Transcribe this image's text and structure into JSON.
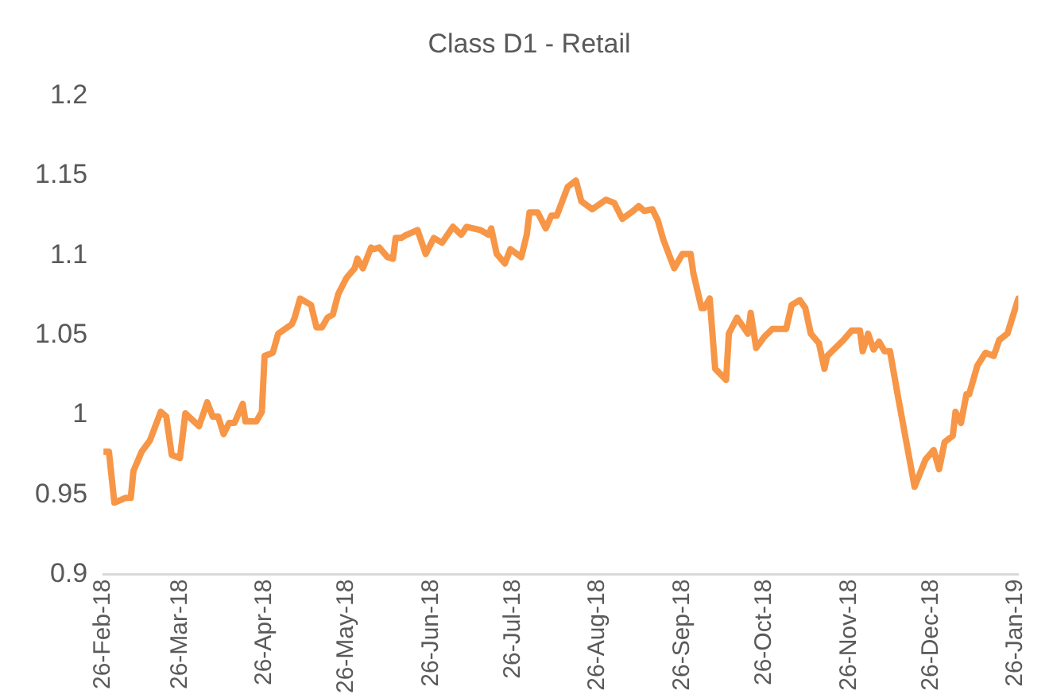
{
  "chart_data": {
    "type": "line",
    "title": "Class D1 - Retail",
    "x": [
      "2018-02-26",
      "2018-02-28",
      "2018-03-02",
      "2018-03-06",
      "2018-03-08",
      "2018-03-09",
      "2018-03-12",
      "2018-03-15",
      "2018-03-19",
      "2018-03-21",
      "2018-03-23",
      "2018-03-26",
      "2018-03-28",
      "2018-04-02",
      "2018-04-05",
      "2018-04-07",
      "2018-04-09",
      "2018-04-11",
      "2018-04-13",
      "2018-04-15",
      "2018-04-18",
      "2018-04-19",
      "2018-04-23",
      "2018-04-25",
      "2018-04-26",
      "2018-04-29",
      "2018-05-01",
      "2018-05-06",
      "2018-05-07",
      "2018-05-09",
      "2018-05-13",
      "2018-05-15",
      "2018-05-17",
      "2018-05-19",
      "2018-05-21",
      "2018-05-23",
      "2018-05-26",
      "2018-05-29",
      "2018-05-30",
      "2018-06-01",
      "2018-06-04",
      "2018-06-05",
      "2018-06-07",
      "2018-06-10",
      "2018-06-12",
      "2018-06-13",
      "2018-06-15",
      "2018-06-17",
      "2018-06-21",
      "2018-06-24",
      "2018-06-27",
      "2018-06-30",
      "2018-07-04",
      "2018-07-07",
      "2018-07-09",
      "2018-07-14",
      "2018-07-17",
      "2018-07-18",
      "2018-07-20",
      "2018-07-23",
      "2018-07-25",
      "2018-07-29",
      "2018-07-31",
      "2018-08-01",
      "2018-08-04",
      "2018-08-07",
      "2018-08-09",
      "2018-08-11",
      "2018-08-15",
      "2018-08-18",
      "2018-08-20",
      "2018-08-24",
      "2018-08-29",
      "2018-09-01",
      "2018-09-04",
      "2018-09-08",
      "2018-09-10",
      "2018-09-12",
      "2018-09-15",
      "2018-09-17",
      "2018-09-19",
      "2018-09-23",
      "2018-09-26",
      "2018-09-29",
      "2018-09-30",
      "2018-10-03",
      "2018-10-04",
      "2018-10-06",
      "2018-10-08",
      "2018-10-12",
      "2018-10-13",
      "2018-10-16",
      "2018-10-20",
      "2018-10-21",
      "2018-10-23",
      "2018-10-26",
      "2018-10-29",
      "2018-11-03",
      "2018-11-05",
      "2018-11-08",
      "2018-11-10",
      "2018-11-12",
      "2018-11-15",
      "2018-11-17",
      "2018-11-18",
      "2018-11-24",
      "2018-11-27",
      "2018-11-30",
      "2018-12-01",
      "2018-12-03",
      "2018-12-05",
      "2018-12-07",
      "2018-12-09",
      "2018-12-11",
      "2018-12-14",
      "2018-12-17",
      "2018-12-20",
      "2018-12-24",
      "2018-12-27",
      "2018-12-29",
      "2018-12-31",
      "2019-01-03",
      "2019-01-04",
      "2019-01-06",
      "2019-01-08",
      "2019-01-09",
      "2019-01-12",
      "2019-01-15",
      "2019-01-18",
      "2019-01-20",
      "2019-01-23",
      "2019-01-27"
    ],
    "series": [
      {
        "color": "#f79646",
        "values": [
          0.977,
          0.977,
          0.945,
          0.948,
          0.948,
          0.965,
          0.977,
          0.984,
          1.002,
          0.999,
          0.975,
          0.973,
          1.001,
          0.993,
          1.008,
          0.999,
          0.999,
          0.988,
          0.995,
          0.995,
          1.007,
          0.996,
          0.996,
          1.002,
          1.037,
          1.039,
          1.051,
          1.057,
          1.061,
          1.073,
          1.069,
          1.055,
          1.055,
          1.061,
          1.063,
          1.076,
          1.086,
          1.092,
          1.098,
          1.092,
          1.105,
          1.104,
          1.105,
          1.099,
          1.098,
          1.111,
          1.111,
          1.113,
          1.116,
          1.101,
          1.111,
          1.108,
          1.118,
          1.113,
          1.118,
          1.116,
          1.113,
          1.117,
          1.101,
          1.095,
          1.104,
          1.099,
          1.113,
          1.127,
          1.127,
          1.117,
          1.125,
          1.125,
          1.143,
          1.147,
          1.134,
          1.129,
          1.135,
          1.133,
          1.123,
          1.128,
          1.131,
          1.128,
          1.129,
          1.122,
          1.11,
          1.092,
          1.101,
          1.101,
          1.089,
          1.067,
          1.067,
          1.073,
          1.029,
          1.022,
          1.051,
          1.061,
          1.051,
          1.064,
          1.042,
          1.049,
          1.054,
          1.054,
          1.069,
          1.072,
          1.067,
          1.051,
          1.045,
          1.029,
          1.037,
          1.047,
          1.053,
          1.053,
          1.04,
          1.051,
          1.041,
          1.046,
          1.04,
          1.04,
          1.011,
          0.983,
          0.955,
          0.972,
          0.978,
          0.966,
          0.983,
          0.987,
          1.002,
          0.995,
          1.013,
          1.013,
          1.031,
          1.039,
          1.037,
          1.047,
          1.051,
          1.073
        ]
      }
    ],
    "xlim": [
      "2018-02-26",
      "2019-01-27"
    ],
    "xticks": [
      {
        "value": "2018-02-26",
        "label": "26-Feb-18"
      },
      {
        "value": "2018-03-26",
        "label": "26-Mar-18"
      },
      {
        "value": "2018-04-26",
        "label": "26-Apr-18"
      },
      {
        "value": "2018-05-26",
        "label": "26-May-18"
      },
      {
        "value": "2018-06-26",
        "label": "26-Jun-18"
      },
      {
        "value": "2018-07-26",
        "label": "26-Jul-18"
      },
      {
        "value": "2018-08-26",
        "label": "26-Aug-18"
      },
      {
        "value": "2018-09-26",
        "label": "26-Sep-18"
      },
      {
        "value": "2018-10-26",
        "label": "26-Oct-18"
      },
      {
        "value": "2018-11-26",
        "label": "26-Nov-18"
      },
      {
        "value": "2018-12-26",
        "label": "26-Dec-18"
      },
      {
        "value": "2019-01-26",
        "label": "26-Jan-19"
      }
    ],
    "ylim": [
      0.9,
      1.2
    ],
    "yticks": [
      0.9,
      0.95,
      1,
      1.05,
      1.1,
      1.15,
      1.2
    ],
    "grid": false,
    "legend": false,
    "marker": "none",
    "line_style": "solid"
  }
}
